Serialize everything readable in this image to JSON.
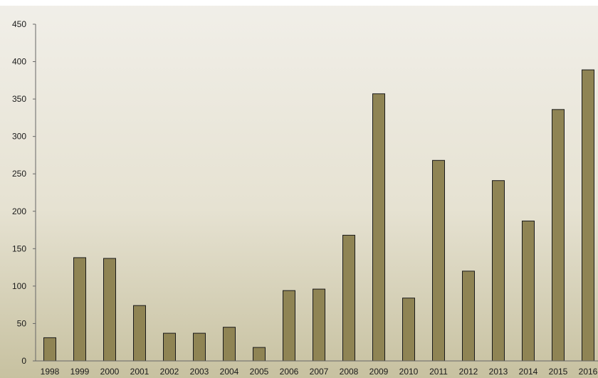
{
  "chart_data": {
    "type": "bar",
    "title": "",
    "xlabel": "",
    "ylabel": "",
    "categories": [
      "1998",
      "1999",
      "2000",
      "2001",
      "2002",
      "2003",
      "2004",
      "2005",
      "2006",
      "2007",
      "2008",
      "2009",
      "2010",
      "2011",
      "2012",
      "2013",
      "2014",
      "2015",
      "2016"
    ],
    "values": [
      31,
      138,
      137,
      74,
      37,
      37,
      45,
      18,
      94,
      96,
      168,
      357,
      84,
      268,
      120,
      241,
      187,
      336,
      389
    ],
    "ylim": [
      0,
      450
    ],
    "yticks": [
      0,
      50,
      100,
      150,
      200,
      250,
      300,
      350,
      400,
      450
    ],
    "grid": false,
    "legend": "none",
    "colors": {
      "bar_fill": "#8f8454",
      "bar_stroke": "#1a1a1a",
      "axis": "#666666",
      "background_top": "#f1efe9",
      "background_bottom": "#c7c1a0"
    }
  }
}
